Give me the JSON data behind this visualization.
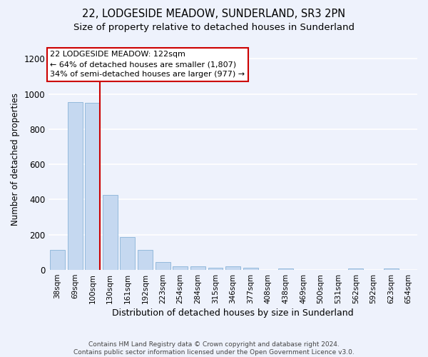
{
  "title": "22, LODGESIDE MEADOW, SUNDERLAND, SR3 2PN",
  "subtitle": "Size of property relative to detached houses in Sunderland",
  "xlabel": "Distribution of detached houses by size in Sunderland",
  "ylabel": "Number of detached properties",
  "categories": [
    "38sqm",
    "69sqm",
    "100sqm",
    "130sqm",
    "161sqm",
    "192sqm",
    "223sqm",
    "254sqm",
    "284sqm",
    "315sqm",
    "346sqm",
    "377sqm",
    "408sqm",
    "438sqm",
    "469sqm",
    "500sqm",
    "531sqm",
    "562sqm",
    "592sqm",
    "623sqm",
    "654sqm"
  ],
  "values": [
    115,
    955,
    950,
    428,
    188,
    113,
    45,
    22,
    20,
    12,
    20,
    12,
    0,
    10,
    0,
    0,
    0,
    8,
    0,
    8,
    0
  ],
  "bar_color": "#c5d8f0",
  "bar_edge_color": "#8ab4d8",
  "annotation_line1": "22 LODGESIDE MEADOW: 122sqm",
  "annotation_line2": "← 64% of detached houses are smaller (1,807)",
  "annotation_line3": "34% of semi-detached houses are larger (977) →",
  "vline_index": 2,
  "vline_color": "#cc0000",
  "ylim": [
    0,
    1260
  ],
  "yticks": [
    0,
    200,
    400,
    600,
    800,
    1000,
    1200
  ],
  "footnote_line1": "Contains HM Land Registry data © Crown copyright and database right 2024.",
  "footnote_line2": "Contains public sector information licensed under the Open Government Licence v3.0.",
  "background_color": "#eef2fc",
  "grid_color": "#ffffff",
  "title_fontsize": 10.5,
  "subtitle_fontsize": 9.5,
  "annotation_box_color": "#cc0000",
  "annotation_facecolor": "#ffffff"
}
